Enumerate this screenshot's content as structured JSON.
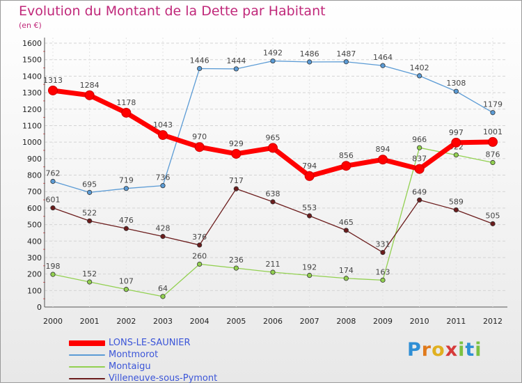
{
  "title": "Evolution du Montant de la Dette par Habitant",
  "subtitle": "(en €)",
  "brand": {
    "letters": [
      "P",
      "r",
      "o",
      "x",
      "i",
      "t",
      "i"
    ],
    "colors": [
      "#2f8fd5",
      "#e07a1c",
      "#e0b020",
      "#d63a3a",
      "#7cc142",
      "#2f8fd5",
      "#7cc142"
    ]
  },
  "chart_data": {
    "type": "line",
    "title": "Evolution du Montant de la Dette par Habitant",
    "xlabel": "",
    "ylabel": "(en €)",
    "x": [
      "2000",
      "2001",
      "2002",
      "2003",
      "2004",
      "2005",
      "2006",
      "2007",
      "2008",
      "2009",
      "2010",
      "2011",
      "2012"
    ],
    "ylim": [
      0,
      1600
    ],
    "yticks": [
      0,
      100,
      200,
      300,
      400,
      500,
      600,
      700,
      800,
      900,
      1000,
      1100,
      1200,
      1300,
      1400,
      1500,
      1600
    ],
    "grid": "horizontal dashed",
    "legend_position": "bottom-left",
    "series": [
      {
        "name": "Montmorot",
        "color": "#5b9bd5",
        "width": 1.3,
        "values": [
          762,
          695,
          719,
          736,
          1446,
          1444,
          1492,
          1486,
          1487,
          1464,
          1402,
          1308,
          1179
        ]
      },
      {
        "name": "Montaigu",
        "color": "#92d050",
        "width": 1.3,
        "values": [
          198,
          152,
          107,
          64,
          260,
          236,
          211,
          192,
          174,
          163,
          966,
          922,
          876
        ]
      },
      {
        "name": "Villeneuve-sous-Pymont",
        "color": "#6b1c1c",
        "width": 1.3,
        "values": [
          601,
          522,
          476,
          428,
          376,
          717,
          638,
          553,
          465,
          331,
          649,
          589,
          505
        ]
      },
      {
        "name": "LONS-LE-SAUNIER",
        "color": "#ff0000",
        "width": 7,
        "values": [
          1313,
          1284,
          1178,
          1043,
          970,
          929,
          965,
          794,
          856,
          894,
          837,
          997,
          1001
        ]
      }
    ],
    "legend_order": [
      "LONS-LE-SAUNIER",
      "Montmorot",
      "Montaigu",
      "Villeneuve-sous-Pymont"
    ]
  }
}
